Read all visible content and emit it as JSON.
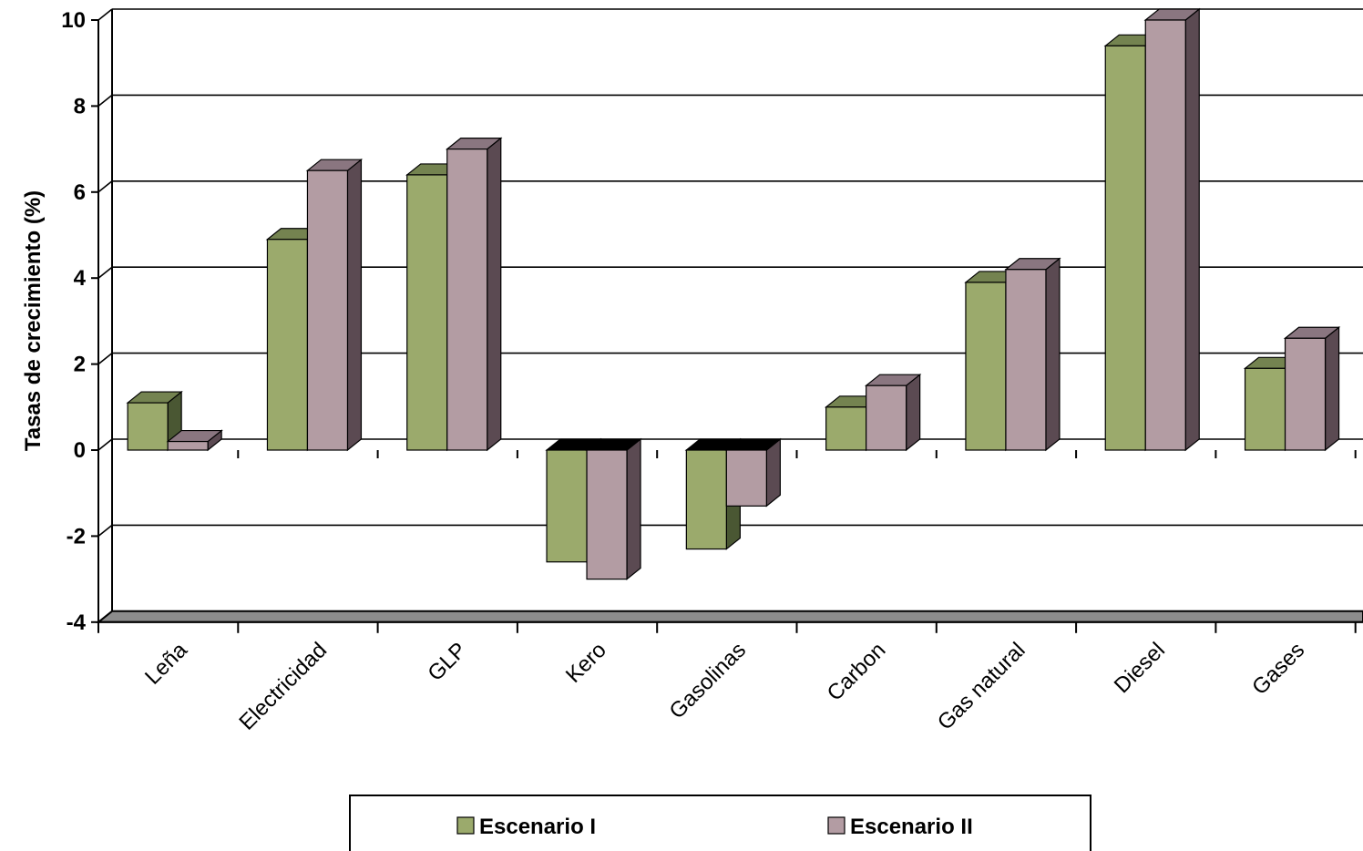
{
  "chart_data": {
    "type": "bar",
    "ylabel": "Tasas de crecimiento (%)",
    "ylim": [
      -4,
      10
    ],
    "yticks": [
      -4,
      -2,
      0,
      2,
      4,
      6,
      8,
      10
    ],
    "grid": true,
    "legend_position": "bottom",
    "categories": [
      "Leña",
      "Electricidad",
      "GLP",
      "Kero",
      "Gasolinas",
      "Carbon",
      "Gas natural",
      "Diesel",
      "Gases"
    ],
    "series": [
      {
        "name": "Escenario I",
        "values": [
          1.1,
          4.9,
          6.4,
          -2.6,
          -2.3,
          1.0,
          3.9,
          9.4,
          1.9
        ]
      },
      {
        "name": "Escenario II",
        "values": [
          0.2,
          6.5,
          7.0,
          -3.0,
          -1.3,
          1.5,
          4.2,
          10.0,
          2.6
        ]
      }
    ],
    "colors": {
      "series1_front": "#9baa6c",
      "series1_side": "#4a5733",
      "series1_top": "#748350",
      "series2_front": "#b39ca3",
      "series2_side": "#5b4a52",
      "series2_top": "#8a7680",
      "floor": "#8c8c8c",
      "neg_top": "#000000"
    }
  }
}
